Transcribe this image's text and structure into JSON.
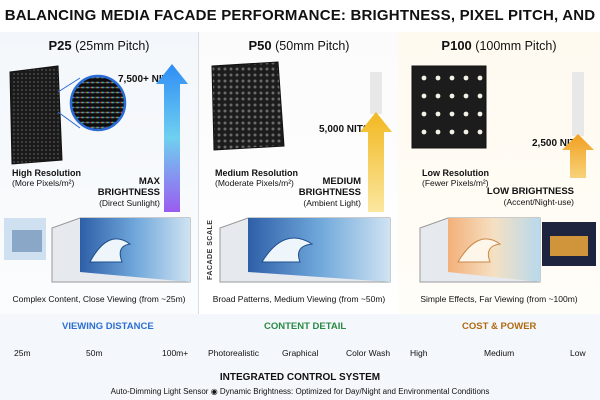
{
  "title": "BALANCING MEDIA FACADE PERFORMANCE: BRIGHTNESS, PIXEL PITCH, AND RESOLUTION",
  "panels": [
    {
      "code": "P25",
      "pitch": "(25mm Pitch)",
      "nits": "7,500+ NITS",
      "res_title": "High Resolution",
      "res_sub": "(More Pixels/m²)",
      "bright_line1": "MAX",
      "bright_line2": "BRIGHTNESS",
      "bright_sub": "(Direct Sunlight)",
      "caption": "Complex Content, Close Viewing (from ~25m)"
    },
    {
      "code": "P50",
      "pitch": "(50mm Pitch)",
      "nits": "5,000 NITS",
      "res_title": "Medium Resolution",
      "res_sub": "(Moderate Pixels/m²)",
      "bright_line1": "MEDIUM",
      "bright_line2": "BRIGHTNESS",
      "bright_sub": "(Ambient Light)",
      "facade_scale": "FACADE SCALE",
      "caption": "Broad Patterns, Medium Viewing (from ~50m)"
    },
    {
      "code": "P100",
      "pitch": "(100mm Pitch)",
      "nits": "2,500 NITS",
      "res_title": "Low Resolution",
      "res_sub": "(Fewer Pixels/m²)",
      "bright_line1": "LOW BRIGHTNESS",
      "bright_sub": "(Accent/Night-use)",
      "caption": "Simple Effects, Far Viewing (from ~100m)"
    }
  ],
  "axes": {
    "viewing_distance": {
      "label": "VIEWING DISTANCE",
      "ticks": [
        "25m",
        "50m",
        "100m+"
      ]
    },
    "content_detail": {
      "label": "CONTENT DETAIL",
      "ticks": [
        "Photorealistic",
        "Graphical",
        "Color Wash"
      ]
    },
    "cost_power": {
      "label": "COST & POWER",
      "ticks": [
        "High",
        "Medium",
        "Low"
      ]
    }
  },
  "control": {
    "title": "INTEGRATED CONTROL SYSTEM",
    "sensor": "Auto-Dimming Light Sensor",
    "dynamic": "Dynamic Brightness: Optimized for Day/Night and Environmental Conditions"
  },
  "colors": {
    "arrow_p25_top": "#3a8ff0",
    "arrow_p25_bottom": "#8b5cf6",
    "arrow_p50_top": "#f3c23a",
    "arrow_p50_bottom": "#f8e08a",
    "arrow_p100": "#f0a020",
    "axis_blue": "#2d6fd1",
    "axis_green": "#3aa655",
    "axis_red": "#d93c2b"
  }
}
